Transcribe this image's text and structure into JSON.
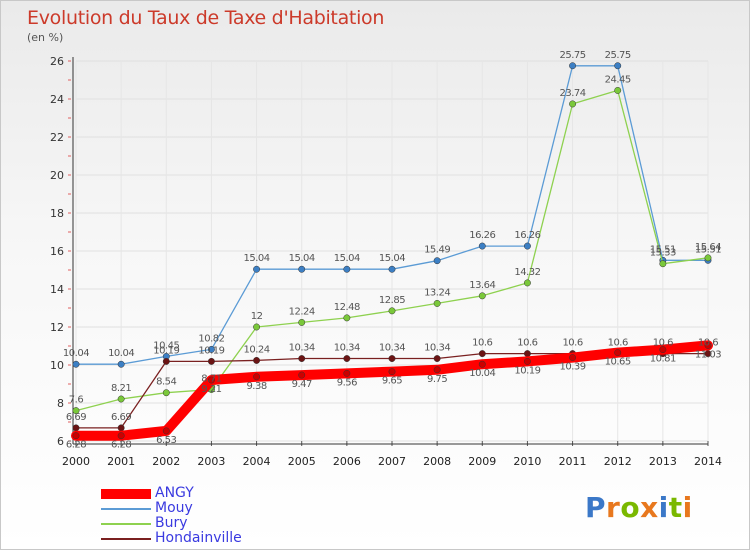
{
  "header": {
    "title": "Evolution du Taux de Taxe d'Habitation",
    "unit": "(en %)"
  },
  "logo": {
    "text": "Proxiti",
    "colors": [
      "#3b78c8",
      "#e8781e",
      "#7ab800",
      "#e8781e",
      "#3b78c8",
      "#7ab800",
      "#e8781e"
    ]
  },
  "chart_data": {
    "type": "line",
    "title": "Evolution du Taux de Taxe d'Habitation",
    "xlabel": "",
    "ylabel": "(en %)",
    "x": [
      "2000",
      "2001",
      "2002",
      "2003",
      "2004",
      "2005",
      "2006",
      "2007",
      "2008",
      "2009",
      "2010",
      "2011",
      "2012",
      "2013",
      "2014"
    ],
    "ylim": [
      6,
      26
    ],
    "yticks": [
      6,
      8,
      10,
      12,
      14,
      16,
      18,
      20,
      22,
      24,
      26
    ],
    "grid": true,
    "legend_position": "bottom-left",
    "series": [
      {
        "name": "ANGY",
        "color": "#ff0000",
        "values": [
          6.28,
          6.28,
          6.53,
          9.21,
          9.38,
          9.47,
          9.56,
          9.65,
          9.75,
          10.04,
          10.19,
          10.39,
          10.65,
          10.81,
          11.03
        ],
        "labels": [
          "6.28",
          "6.28",
          "6.53",
          "9.21",
          "9.38",
          "9.47",
          "9.56",
          "9.65",
          "9.75",
          "10.04",
          "10.19",
          "10.39",
          "10.65",
          "10.81",
          "11.03"
        ]
      },
      {
        "name": "Mouy",
        "color": "#5b9bd5",
        "values": [
          10.04,
          10.04,
          10.45,
          10.82,
          15.04,
          15.04,
          15.04,
          15.04,
          15.49,
          16.26,
          16.26,
          25.75,
          25.75,
          15.51,
          15.51
        ],
        "labels": [
          "10.04",
          "10.04",
          "10.45",
          "10.82",
          "15.04",
          "15.04",
          "15.04",
          "15.04",
          "15.49",
          "16.26",
          "16.26",
          "25.75",
          "25.75",
          "15.51",
          "15.51"
        ]
      },
      {
        "name": "Bury",
        "color": "#8ed14f",
        "values": [
          7.6,
          8.21,
          8.54,
          8.71,
          12,
          12.24,
          12.48,
          12.85,
          13.24,
          13.64,
          14.32,
          23.74,
          24.45,
          15.33,
          15.64
        ],
        "labels": [
          "7.6",
          "8.21",
          "8.54",
          "8.71",
          "12",
          "12.24",
          "12.48",
          "12.85",
          "13.24",
          "13.64",
          "14.32",
          "23.74",
          "24.45",
          "15.33",
          "15.64"
        ]
      },
      {
        "name": "Hondainville",
        "color": "#7a2020",
        "values": [
          6.69,
          6.69,
          10.19,
          10.19,
          10.24,
          10.34,
          10.34,
          10.34,
          10.34,
          10.6,
          10.6,
          10.6,
          10.6,
          10.6,
          10.6
        ],
        "labels": [
          "6.69",
          "6.69",
          "10.19",
          "10.19",
          "10.24",
          "10.34",
          "10.34",
          "10.34",
          "10.34",
          "10.6",
          "10.6",
          "10.6",
          "10.6",
          "10.6",
          "10.6"
        ]
      }
    ]
  }
}
